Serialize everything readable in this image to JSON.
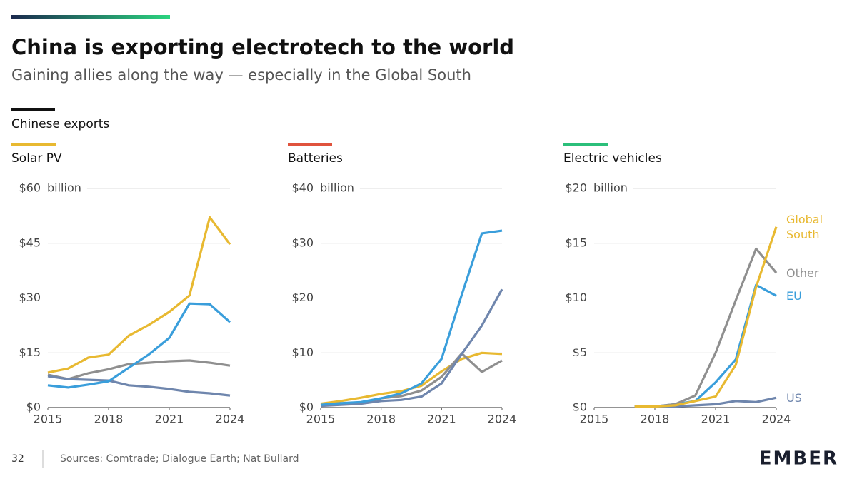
{
  "header": {
    "title": "China is exporting electrotech to the world",
    "subtitle": "Gaining allies along the way — especially in the Global South",
    "section": "Chinese exports"
  },
  "chart_data": [
    {
      "type": "line",
      "title": "Solar PV",
      "accent": "#e8b931",
      "y_unit": "billion",
      "x": [
        2015,
        2016,
        2017,
        2018,
        2019,
        2020,
        2021,
        2022,
        2023,
        2024
      ],
      "xlim": [
        2015,
        2024
      ],
      "xticks": [
        2015,
        2018,
        2021,
        2024
      ],
      "ylim": [
        0,
        60
      ],
      "yticks": [
        {
          "value": 0,
          "label": "$0"
        },
        {
          "value": 15,
          "label": "$15"
        },
        {
          "value": 30,
          "label": "$30"
        },
        {
          "value": 45,
          "label": "$45"
        },
        {
          "value": 60,
          "label": "$60"
        }
      ],
      "grid": true,
      "series": [
        {
          "color": "#8f8f8f",
          "values": [
            9.0,
            7.8,
            9.4,
            10.5,
            11.9,
            12.3,
            12.7,
            12.9,
            12.3,
            11.5
          ]
        },
        {
          "color": "#6f86ad",
          "values": [
            8.6,
            7.8,
            7.6,
            7.4,
            6.1,
            5.7,
            5.1,
            4.3,
            3.9,
            3.3
          ]
        },
        {
          "color": "#3a9edb",
          "values": [
            6.1,
            5.5,
            6.3,
            7.2,
            10.9,
            14.6,
            19.1,
            28.5,
            28.3,
            23.4
          ]
        },
        {
          "color": "#e8b931",
          "values": [
            9.6,
            10.7,
            13.7,
            14.5,
            19.7,
            22.7,
            26.2,
            30.7,
            52.1,
            44.7
          ]
        }
      ]
    },
    {
      "type": "line",
      "title": "Batteries",
      "accent": "#e0533d",
      "y_unit": "billion",
      "x": [
        2015,
        2016,
        2017,
        2018,
        2019,
        2020,
        2021,
        2022,
        2023,
        2024
      ],
      "xlim": [
        2015,
        2024
      ],
      "xticks": [
        2015,
        2018,
        2021,
        2024
      ],
      "ylim": [
        0,
        40
      ],
      "yticks": [
        {
          "value": 0,
          "label": "$0"
        },
        {
          "value": 10,
          "label": "$10"
        },
        {
          "value": 20,
          "label": "$20"
        },
        {
          "value": 30,
          "label": "$30"
        },
        {
          "value": 40,
          "label": "$40"
        }
      ],
      "grid": true,
      "series": [
        {
          "color": "#e8b931",
          "values": [
            0.7,
            1.2,
            1.8,
            2.5,
            3.0,
            4.0,
            6.6,
            8.9,
            10.0,
            9.8
          ]
        },
        {
          "color": "#8f8f8f",
          "values": [
            0.5,
            0.7,
            0.8,
            1.7,
            2.1,
            3.1,
            5.6,
            9.9,
            6.5,
            8.6
          ]
        },
        {
          "color": "#6f86ad",
          "values": [
            0.3,
            0.5,
            0.7,
            1.2,
            1.4,
            2.0,
            4.4,
            9.8,
            15.0,
            21.6
          ]
        },
        {
          "color": "#3a9edb",
          "values": [
            0.5,
            0.8,
            1.0,
            1.7,
            2.6,
            4.4,
            8.9,
            20.6,
            31.8,
            32.3
          ]
        }
      ]
    },
    {
      "type": "line",
      "title": "Electric vehicles",
      "accent": "#2bbf7a",
      "y_unit": "billion",
      "x": [
        2015,
        2016,
        2017,
        2018,
        2019,
        2020,
        2021,
        2022,
        2023,
        2024
      ],
      "xlim": [
        2015,
        2024
      ],
      "xticks": [
        2015,
        2018,
        2021,
        2024
      ],
      "ylim": [
        0,
        20
      ],
      "yticks": [
        {
          "value": 0,
          "label": "$0"
        },
        {
          "value": 5,
          "label": "$5"
        },
        {
          "value": 10,
          "label": "$10"
        },
        {
          "value": 15,
          "label": "$15"
        },
        {
          "value": 20,
          "label": "$20"
        }
      ],
      "grid": true,
      "series": [
        {
          "name": "US",
          "color": "#6f86ad",
          "values": [
            null,
            null,
            0.1,
            0.1,
            0.1,
            0.2,
            0.3,
            0.6,
            0.5,
            0.9
          ]
        },
        {
          "name": "EU",
          "color": "#3a9edb",
          "values": [
            null,
            null,
            0.1,
            0.1,
            0.3,
            0.6,
            2.3,
            4.4,
            11.2,
            10.2
          ]
        },
        {
          "name": "Other",
          "color": "#8f8f8f",
          "values": [
            null,
            null,
            0.1,
            0.1,
            0.3,
            1.1,
            5.0,
            9.8,
            14.5,
            12.3
          ]
        },
        {
          "name": "Global South",
          "color": "#e8b931",
          "values": [
            null,
            null,
            0.1,
            0.1,
            0.2,
            0.6,
            1.0,
            3.9,
            11.0,
            16.5
          ]
        }
      ]
    }
  ],
  "footer": {
    "page": "32",
    "sources": "Sources: Comtrade; Dialogue Earth; Nat Bullard",
    "logo": "EMBER"
  }
}
